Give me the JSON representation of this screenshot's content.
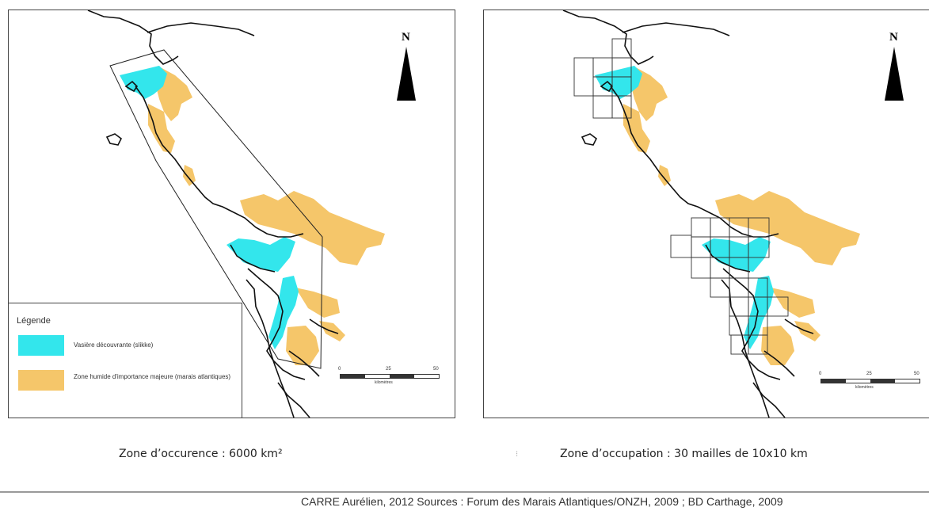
{
  "maps": [
    {
      "caption": "Zone d’occurence : 6000 km²",
      "north_label": "N",
      "scale": {
        "ticks": [
          "0",
          "25",
          "50"
        ],
        "unit": "kilomètres"
      },
      "legend": {
        "title": "Légende",
        "items": [
          {
            "label": "Vasière découvrante (slikke)",
            "color": "#33e6ec"
          },
          {
            "label": "Zone humide d'importance majeure (marais atlantiques)",
            "color": "#f5c66a"
          }
        ]
      }
    },
    {
      "caption": "Zone d’occupation : 30 mailles de 10x10 km",
      "north_label": "N",
      "scale": {
        "ticks": [
          "0",
          "25",
          "50"
        ],
        "unit": "kilomètres"
      }
    }
  ],
  "source_note": "CARRE Aurélien, 2012  Sources : Forum des Marais Atlantiques/ONZH, 2009 ; BD Carthage, 2009",
  "colors": {
    "mudflat": "#33e6ec",
    "wetland": "#f5c66a",
    "coast": "#111111"
  },
  "stray_mark": "⁝"
}
